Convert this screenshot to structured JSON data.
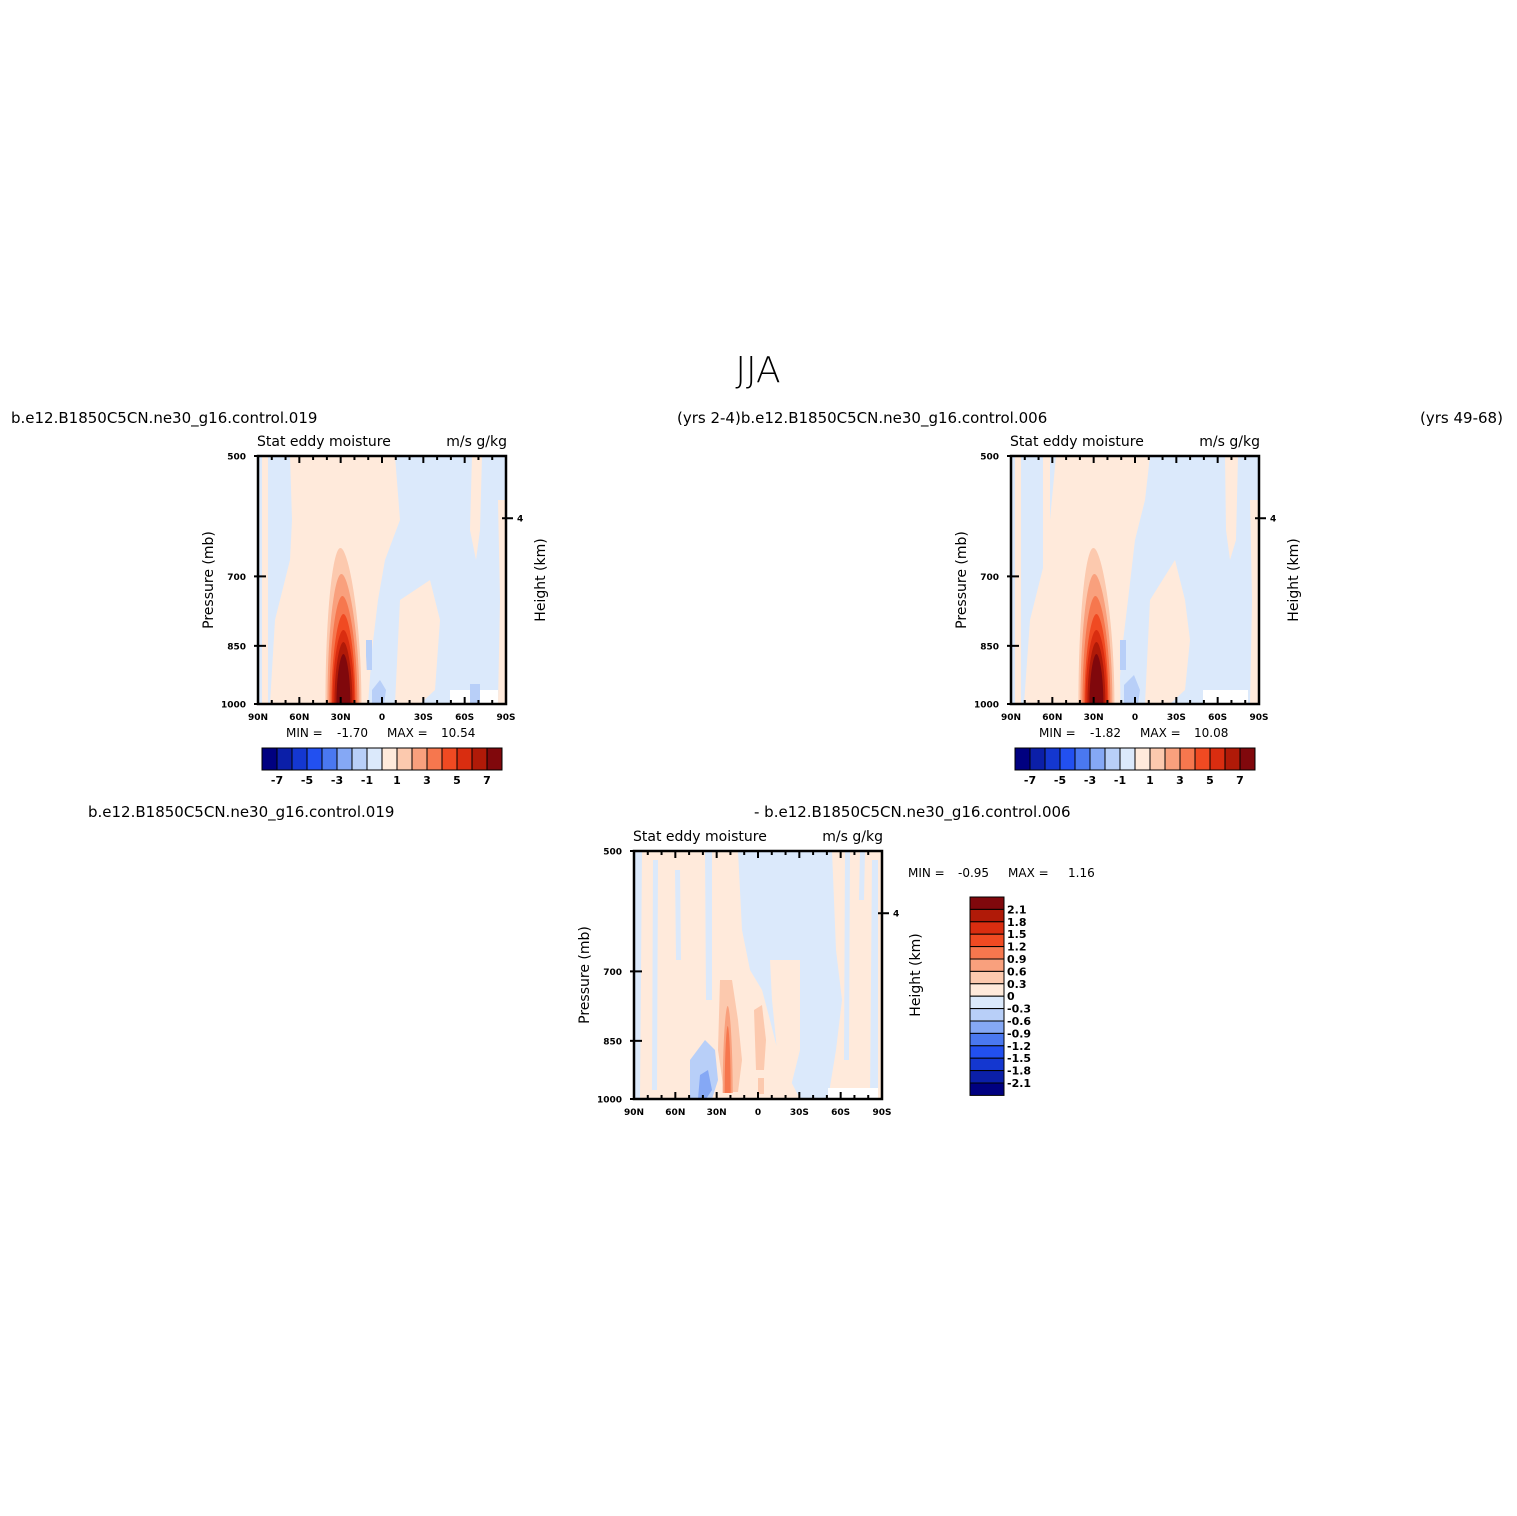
{
  "page": {
    "title": "JJA"
  },
  "headers": {
    "top_left": "b.e12.B1850C5CN.ne30_g16.control.019",
    "top_mid": "(yrs 2-4)b.e12.B1850C5CN.ne30_g16.control.006",
    "top_right": "(yrs 49-68)",
    "diff_left": "b.e12.B1850C5CN.ne30_g16.control.019",
    "diff_mid": "- b.e12.B1850C5CN.ne30_g16.control.006"
  },
  "colors": {
    "scale": [
      "#000080",
      "#0b1fa8",
      "#1437d0",
      "#2250f0",
      "#4a78f0",
      "#85a8f5",
      "#b8cff8",
      "#dbe9fb",
      "#ffeadb",
      "#fcc9ae",
      "#f9a07d",
      "#f6774e",
      "#f04a22",
      "#d92d10",
      "#b01a08",
      "#80080c"
    ]
  },
  "chart_data": [
    {
      "type": "heatmap",
      "panel": "top-left",
      "title_left": "Stat eddy moisture",
      "title_right": "m/s g/kg",
      "xlabel": "",
      "ylabel": "Pressure (mb)",
      "ylabel_right": "Height (km)",
      "x_ticks": [
        "90N",
        "60N",
        "30N",
        "0",
        "30S",
        "60S",
        "90S"
      ],
      "y_ticks": [
        "500",
        "700",
        "850",
        "1000"
      ],
      "y_right_ticks": [
        "4"
      ],
      "stats": {
        "min_label": "MIN =",
        "min": "-1.70",
        "max_label": "MAX =",
        "max": "10.54"
      },
      "colorbar": {
        "orientation": "horizontal",
        "labels": [
          "-7",
          "-5",
          "-3",
          "-1",
          "1",
          "3",
          "5",
          "7"
        ]
      },
      "peak": {
        "lat": 28,
        "pressure": 930,
        "value": 10.54
      }
    },
    {
      "type": "heatmap",
      "panel": "top-right",
      "title_left": "Stat eddy moisture",
      "title_right": "m/s g/kg",
      "xlabel": "",
      "ylabel": "Pressure (mb)",
      "ylabel_right": "Height (km)",
      "x_ticks": [
        "90N",
        "60N",
        "30N",
        "0",
        "30S",
        "60S",
        "90S"
      ],
      "y_ticks": [
        "500",
        "700",
        "850",
        "1000"
      ],
      "y_right_ticks": [
        "4"
      ],
      "stats": {
        "min_label": "MIN =",
        "min": "-1.82",
        "max_label": "MAX =",
        "max": "10.08"
      },
      "colorbar": {
        "orientation": "horizontal",
        "labels": [
          "-7",
          "-5",
          "-3",
          "-1",
          "1",
          "3",
          "5",
          "7"
        ]
      },
      "peak": {
        "lat": 28,
        "pressure": 930,
        "value": 10.08
      }
    },
    {
      "type": "heatmap",
      "panel": "bottom-difference",
      "title_left": "Stat eddy moisture",
      "title_right": "m/s g/kg",
      "xlabel": "",
      "ylabel": "Pressure (mb)",
      "ylabel_right": "Height (km)",
      "x_ticks": [
        "90N",
        "60N",
        "30N",
        "0",
        "30S",
        "60S",
        "90S"
      ],
      "y_ticks": [
        "500",
        "700",
        "850",
        "1000"
      ],
      "y_right_ticks": [
        "4"
      ],
      "stats": {
        "min_label": "MIN =",
        "min": "-0.95",
        "max_label": "MAX =",
        "max": "1.16"
      },
      "colorbar": {
        "orientation": "vertical",
        "labels": [
          "2.1",
          "1.8",
          "1.5",
          "1.2",
          "0.9",
          "0.6",
          "0.3",
          "0",
          "-0.3",
          "-0.6",
          "-0.9",
          "-1.2",
          "-1.5",
          "-1.8",
          "-2.1"
        ]
      },
      "peak": {
        "lat": 22,
        "pressure": 880,
        "value": 1.16
      }
    }
  ]
}
